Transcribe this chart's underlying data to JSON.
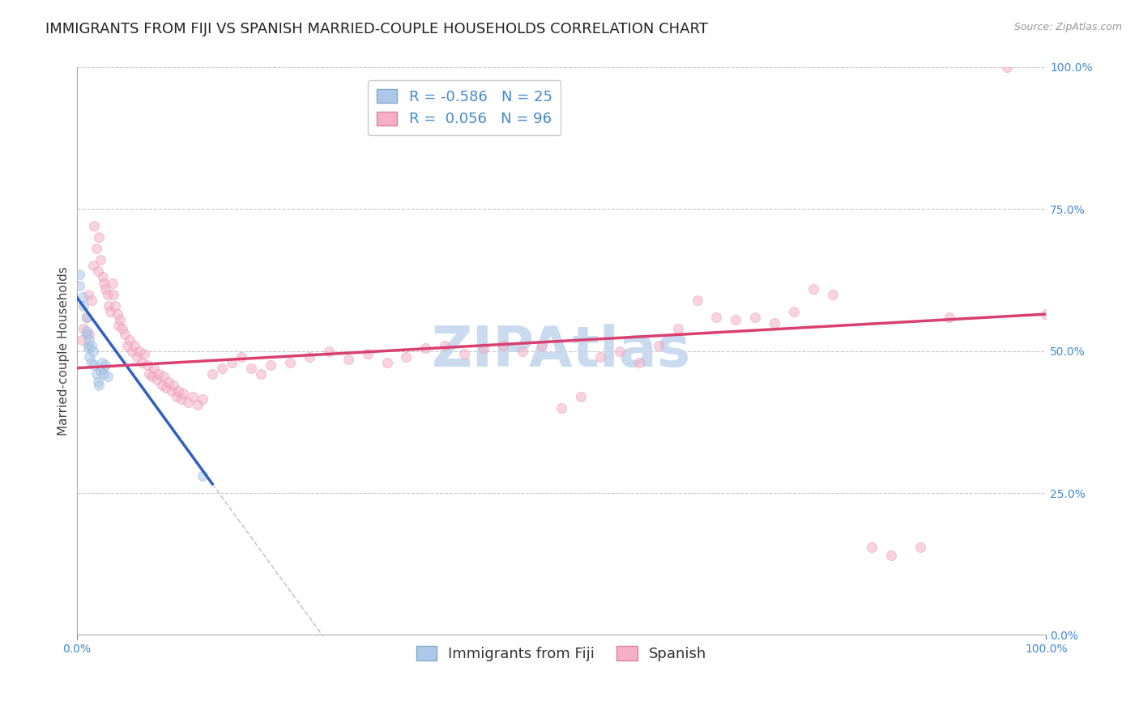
{
  "title": "IMMIGRANTS FROM FIJI VS SPANISH MARRIED-COUPLE HOUSEHOLDS CORRELATION CHART",
  "source_text": "Source: ZipAtlas.com",
  "xlabel": "Immigrants from Fiji",
  "ylabel": "Married-couple Households",
  "xlim": [
    0,
    1.0
  ],
  "ylim": [
    0,
    1.0
  ],
  "fiji_R": -0.586,
  "fiji_N": 25,
  "spanish_R": 0.056,
  "spanish_N": 96,
  "fiji_color": "#adc8e8",
  "fiji_edge_color": "#80aacc",
  "fiji_line_color": "#3060c0",
  "spanish_color": "#f5b0c8",
  "spanish_edge_color": "#e080a0",
  "spanish_line_color": "#d84070",
  "watermark_color": "#c5d8ef",
  "background_color": "#ffffff",
  "grid_color": "#c8c8c8",
  "title_color": "#222222",
  "tick_color": "#4488cc",
  "fiji_dots": [
    [
      0.003,
      0.635
    ],
    [
      0.003,
      0.615
    ],
    [
      0.006,
      0.595
    ],
    [
      0.007,
      0.58
    ],
    [
      0.01,
      0.56
    ],
    [
      0.01,
      0.535
    ],
    [
      0.01,
      0.53
    ],
    [
      0.012,
      0.51
    ],
    [
      0.012,
      0.505
    ],
    [
      0.013,
      0.52
    ],
    [
      0.013,
      0.49
    ],
    [
      0.015,
      0.51
    ],
    [
      0.015,
      0.48
    ],
    [
      0.017,
      0.5
    ],
    [
      0.018,
      0.475
    ],
    [
      0.02,
      0.46
    ],
    [
      0.022,
      0.445
    ],
    [
      0.023,
      0.44
    ],
    [
      0.025,
      0.465
    ],
    [
      0.026,
      0.48
    ],
    [
      0.027,
      0.47
    ],
    [
      0.028,
      0.46
    ],
    [
      0.03,
      0.475
    ],
    [
      0.032,
      0.455
    ],
    [
      0.13,
      0.28
    ]
  ],
  "spanish_dots": [
    [
      0.005,
      0.52
    ],
    [
      0.007,
      0.54
    ],
    [
      0.01,
      0.56
    ],
    [
      0.012,
      0.6
    ],
    [
      0.013,
      0.53
    ],
    [
      0.015,
      0.59
    ],
    [
      0.017,
      0.65
    ],
    [
      0.018,
      0.72
    ],
    [
      0.02,
      0.68
    ],
    [
      0.022,
      0.64
    ],
    [
      0.023,
      0.7
    ],
    [
      0.025,
      0.66
    ],
    [
      0.027,
      0.63
    ],
    [
      0.028,
      0.62
    ],
    [
      0.03,
      0.61
    ],
    [
      0.032,
      0.6
    ],
    [
      0.033,
      0.58
    ],
    [
      0.035,
      0.57
    ],
    [
      0.037,
      0.62
    ],
    [
      0.038,
      0.6
    ],
    [
      0.04,
      0.58
    ],
    [
      0.042,
      0.565
    ],
    [
      0.043,
      0.545
    ],
    [
      0.045,
      0.555
    ],
    [
      0.047,
      0.54
    ],
    [
      0.05,
      0.53
    ],
    [
      0.052,
      0.51
    ],
    [
      0.055,
      0.52
    ],
    [
      0.057,
      0.5
    ],
    [
      0.06,
      0.51
    ],
    [
      0.062,
      0.49
    ],
    [
      0.065,
      0.5
    ],
    [
      0.067,
      0.48
    ],
    [
      0.07,
      0.495
    ],
    [
      0.073,
      0.475
    ],
    [
      0.075,
      0.46
    ],
    [
      0.078,
      0.455
    ],
    [
      0.08,
      0.47
    ],
    [
      0.083,
      0.45
    ],
    [
      0.085,
      0.46
    ],
    [
      0.088,
      0.44
    ],
    [
      0.09,
      0.455
    ],
    [
      0.092,
      0.435
    ],
    [
      0.095,
      0.445
    ],
    [
      0.098,
      0.43
    ],
    [
      0.1,
      0.44
    ],
    [
      0.103,
      0.42
    ],
    [
      0.105,
      0.43
    ],
    [
      0.108,
      0.415
    ],
    [
      0.11,
      0.425
    ],
    [
      0.115,
      0.41
    ],
    [
      0.12,
      0.42
    ],
    [
      0.125,
      0.405
    ],
    [
      0.13,
      0.415
    ],
    [
      0.14,
      0.46
    ],
    [
      0.15,
      0.47
    ],
    [
      0.16,
      0.48
    ],
    [
      0.17,
      0.49
    ],
    [
      0.18,
      0.47
    ],
    [
      0.19,
      0.46
    ],
    [
      0.2,
      0.475
    ],
    [
      0.22,
      0.48
    ],
    [
      0.24,
      0.49
    ],
    [
      0.26,
      0.5
    ],
    [
      0.28,
      0.485
    ],
    [
      0.3,
      0.495
    ],
    [
      0.32,
      0.48
    ],
    [
      0.34,
      0.49
    ],
    [
      0.36,
      0.505
    ],
    [
      0.38,
      0.51
    ],
    [
      0.4,
      0.495
    ],
    [
      0.42,
      0.505
    ],
    [
      0.44,
      0.51
    ],
    [
      0.46,
      0.5
    ],
    [
      0.48,
      0.51
    ],
    [
      0.5,
      0.4
    ],
    [
      0.52,
      0.42
    ],
    [
      0.54,
      0.49
    ],
    [
      0.56,
      0.5
    ],
    [
      0.58,
      0.48
    ],
    [
      0.6,
      0.51
    ],
    [
      0.62,
      0.54
    ],
    [
      0.64,
      0.59
    ],
    [
      0.66,
      0.56
    ],
    [
      0.68,
      0.555
    ],
    [
      0.7,
      0.56
    ],
    [
      0.72,
      0.55
    ],
    [
      0.74,
      0.57
    ],
    [
      0.76,
      0.61
    ],
    [
      0.78,
      0.6
    ],
    [
      0.82,
      0.155
    ],
    [
      0.84,
      0.14
    ],
    [
      0.87,
      0.155
    ],
    [
      0.9,
      0.56
    ],
    [
      0.96,
      1.0
    ],
    [
      1.0,
      0.565
    ]
  ],
  "marker_size": 75,
  "marker_alpha": 0.55,
  "legend_fontsize": 13,
  "title_fontsize": 13,
  "axis_label_fontsize": 11,
  "fiji_line_x_solid_end": 0.14,
  "fiji_line_x_dash_end": 0.42,
  "fiji_line_start_y": 0.595,
  "fiji_line_slope": -2.35,
  "spanish_line_start_y": 0.47,
  "spanish_line_end_y": 0.565
}
